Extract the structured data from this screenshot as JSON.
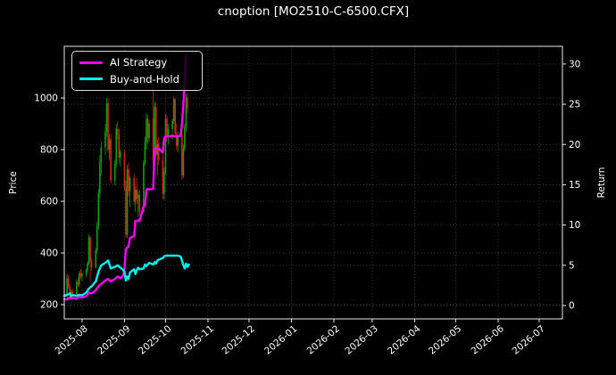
{
  "window": {
    "title": "cnoption [MO2510-C-6500.CFX]",
    "background": "#000000"
  },
  "chart_data": {
    "type": "candlestick+line",
    "title": "cnoption [MO2510-C-6500.CFX]",
    "grid": true,
    "x_axis": {
      "tick_labels": [
        "2025-08",
        "2025-09",
        "2025-10",
        "2025-11",
        "2025-12",
        "2026-01",
        "2026-02",
        "2026-03",
        "2026-04",
        "2026-05",
        "2026-06",
        "2026-07"
      ],
      "tick_days": [
        14,
        45,
        75,
        106,
        136,
        167,
        198,
        226,
        257,
        287,
        318,
        348
      ],
      "domain_days": [
        1,
        365
      ]
    },
    "left_axis": {
      "label": "Price",
      "ticks": [
        200,
        400,
        600,
        800,
        1000
      ],
      "domain": [
        145,
        1200
      ]
    },
    "right_axis": {
      "label": "Return",
      "ticks": [
        0,
        5,
        10,
        15,
        20,
        25,
        30
      ],
      "domain": [
        -1.66,
        32.2
      ]
    },
    "colors": {
      "background": "#000000",
      "text": "#ffffff",
      "grid": "#4d4d4d",
      "spine": "#e8e8e8",
      "candle_up": "#0ca30a",
      "candle_down": "#d62418",
      "ai_strategy": "#ff00ff",
      "buy_and_hold": "#00f0f0"
    },
    "legend": {
      "position": "upper-left",
      "items": [
        {
          "label": "AI Strategy",
          "color": "#ff00ff"
        },
        {
          "label": "Buy-and-Hold",
          "color": "#00f0f0"
        }
      ]
    },
    "candles_format": [
      "day",
      "open",
      "high",
      "low",
      "close"
    ],
    "candles": [
      [
        3,
        232,
        318,
        225,
        302
      ],
      [
        4,
        302,
        312,
        262,
        268
      ],
      [
        5,
        268,
        280,
        238,
        245
      ],
      [
        6,
        245,
        258,
        222,
        250
      ],
      [
        7,
        250,
        262,
        235,
        240
      ],
      [
        10,
        240,
        298,
        236,
        288
      ],
      [
        11,
        288,
        305,
        270,
        278
      ],
      [
        12,
        278,
        330,
        268,
        322
      ],
      [
        13,
        322,
        338,
        300,
        310
      ],
      [
        14,
        310,
        325,
        290,
        318
      ],
      [
        17,
        318,
        340,
        305,
        332
      ],
      [
        18,
        332,
        368,
        325,
        360
      ],
      [
        19,
        360,
        472,
        352,
        460
      ],
      [
        20,
        460,
        465,
        290,
        368
      ],
      [
        21,
        368,
        380,
        330,
        345
      ],
      [
        24,
        345,
        420,
        340,
        410
      ],
      [
        25,
        410,
        520,
        400,
        505
      ],
      [
        26,
        505,
        650,
        490,
        630
      ],
      [
        27,
        630,
        780,
        610,
        755
      ],
      [
        28,
        755,
        830,
        700,
        810
      ],
      [
        31,
        810,
        900,
        780,
        870
      ],
      [
        32,
        870,
        1000,
        850,
        980
      ],
      [
        33,
        980,
        1000,
        790,
        800
      ],
      [
        34,
        800,
        860,
        760,
        840
      ],
      [
        35,
        840,
        860,
        668,
        680
      ],
      [
        38,
        680,
        760,
        660,
        745
      ],
      [
        39,
        745,
        900,
        730,
        880
      ],
      [
        40,
        880,
        910,
        840,
        860
      ],
      [
        41,
        860,
        880,
        750,
        770
      ],
      [
        42,
        770,
        800,
        735,
        790
      ],
      [
        45,
        790,
        800,
        640,
        655
      ],
      [
        46,
        655,
        680,
        458,
        470
      ],
      [
        47,
        470,
        740,
        460,
        725
      ],
      [
        48,
        725,
        750,
        620,
        640
      ],
      [
        49,
        640,
        700,
        580,
        690
      ],
      [
        52,
        690,
        705,
        585,
        600
      ],
      [
        53,
        600,
        660,
        560,
        645
      ],
      [
        54,
        645,
        690,
        590,
        610
      ],
      [
        55,
        610,
        640,
        540,
        625
      ],
      [
        56,
        625,
        645,
        545,
        560
      ],
      [
        59,
        560,
        760,
        555,
        750
      ],
      [
        60,
        750,
        850,
        740,
        830
      ],
      [
        61,
        830,
        940,
        800,
        920
      ],
      [
        62,
        920,
        935,
        820,
        845
      ],
      [
        63,
        845,
        915,
        830,
        900
      ],
      [
        66,
        920,
        1052,
        740,
        755
      ],
      [
        67,
        755,
        985,
        750,
        965
      ],
      [
        68,
        965,
        985,
        765,
        780
      ],
      [
        69,
        780,
        840,
        700,
        820
      ],
      [
        70,
        820,
        850,
        740,
        760
      ],
      [
        73,
        760,
        800,
        610,
        630
      ],
      [
        74,
        630,
        730,
        605,
        715
      ],
      [
        75,
        715,
        940,
        700,
        920
      ],
      [
        76,
        920,
        935,
        830,
        855
      ],
      [
        77,
        855,
        900,
        820,
        880
      ],
      [
        80,
        880,
        920,
        840,
        910
      ],
      [
        81,
        910,
        1005,
        900,
        995
      ],
      [
        82,
        995,
        1000,
        850,
        862
      ],
      [
        83,
        862,
        900,
        800,
        815
      ],
      [
        84,
        815,
        870,
        790,
        855
      ],
      [
        87,
        855,
        880,
        685,
        700
      ],
      [
        88,
        700,
        820,
        690,
        805
      ],
      [
        89,
        805,
        900,
        795,
        885
      ],
      [
        90,
        885,
        1015,
        870,
        1000
      ],
      [
        91,
        1000,
        1017,
        940,
        960
      ]
    ],
    "series": [
      {
        "name": "AI Strategy",
        "axis": "right",
        "color": "#ff00ff",
        "points": [
          [
            1,
            0.8
          ],
          [
            3,
            0.75
          ],
          [
            5,
            1.0
          ],
          [
            6,
            0.9
          ],
          [
            7,
            0.95
          ],
          [
            10,
            0.85
          ],
          [
            12,
            1.1
          ],
          [
            14,
            1.0
          ],
          [
            17,
            1.15
          ],
          [
            19,
            1.6
          ],
          [
            21,
            1.5
          ],
          [
            24,
            1.9
          ],
          [
            26,
            2.4
          ],
          [
            28,
            2.7
          ],
          [
            31,
            3.1
          ],
          [
            33,
            3.3
          ],
          [
            35,
            3.0
          ],
          [
            38,
            3.3
          ],
          [
            40,
            3.6
          ],
          [
            42,
            3.4
          ],
          [
            44,
            3.7
          ],
          [
            45,
            4.7
          ],
          [
            46,
            7.0
          ],
          [
            47,
            7.2
          ],
          [
            48,
            7.3
          ],
          [
            49,
            8.4
          ],
          [
            52,
            8.6
          ],
          [
            53,
            10.5
          ],
          [
            54,
            10.5
          ],
          [
            55,
            10.6
          ],
          [
            56,
            10.5
          ],
          [
            59,
            12.3
          ],
          [
            60,
            12.4
          ],
          [
            61,
            14.4
          ],
          [
            62,
            14.5
          ],
          [
            63,
            14.4
          ],
          [
            66,
            14.5
          ],
          [
            67,
            19.4
          ],
          [
            68,
            19.6
          ],
          [
            70,
            19.5
          ],
          [
            73,
            19.0
          ],
          [
            74,
            20.8
          ],
          [
            75,
            21.0
          ],
          [
            77,
            21.0
          ],
          [
            80,
            21.1
          ],
          [
            82,
            21.0
          ],
          [
            84,
            21.0
          ],
          [
            86,
            21.1
          ],
          [
            87,
            22.5
          ],
          [
            88,
            25.0
          ],
          [
            89,
            28.0
          ],
          [
            90,
            31.0
          ]
        ]
      },
      {
        "name": "Buy-and-Hold",
        "axis": "right",
        "color": "#00f0f0",
        "points": [
          [
            1,
            1.2
          ],
          [
            3,
            1.3
          ],
          [
            5,
            1.5
          ],
          [
            6,
            1.15
          ],
          [
            7,
            1.3
          ],
          [
            10,
            1.2
          ],
          [
            12,
            1.35
          ],
          [
            14,
            1.25
          ],
          [
            17,
            1.6
          ],
          [
            19,
            2.1
          ],
          [
            21,
            2.4
          ],
          [
            24,
            3.0
          ],
          [
            26,
            4.2
          ],
          [
            28,
            5.0
          ],
          [
            31,
            5.3
          ],
          [
            33,
            5.6
          ],
          [
            35,
            4.6
          ],
          [
            38,
            4.8
          ],
          [
            40,
            5.0
          ],
          [
            42,
            4.7
          ],
          [
            44,
            4.4
          ],
          [
            45,
            4.2
          ],
          [
            46,
            3.1
          ],
          [
            47,
            3.6
          ],
          [
            48,
            3.3
          ],
          [
            49,
            4.1
          ],
          [
            52,
            4.5
          ],
          [
            53,
            3.9
          ],
          [
            54,
            4.4
          ],
          [
            55,
            4.7
          ],
          [
            56,
            4.5
          ],
          [
            59,
            4.6
          ],
          [
            60,
            5.1
          ],
          [
            61,
            4.9
          ],
          [
            62,
            5.1
          ],
          [
            63,
            5.3
          ],
          [
            66,
            5.1
          ],
          [
            67,
            5.4
          ],
          [
            68,
            5.2
          ],
          [
            69,
            5.6
          ],
          [
            70,
            5.7
          ],
          [
            73,
            5.9
          ],
          [
            74,
            6.1
          ],
          [
            75,
            6.2
          ],
          [
            77,
            6.2
          ],
          [
            80,
            6.2
          ],
          [
            82,
            6.2
          ],
          [
            84,
            6.2
          ],
          [
            86,
            6.1
          ],
          [
            87,
            5.6
          ],
          [
            88,
            5.0
          ],
          [
            89,
            4.6
          ],
          [
            90,
            5.2
          ],
          [
            91,
            4.8
          ],
          [
            92,
            5.1
          ]
        ]
      }
    ]
  }
}
